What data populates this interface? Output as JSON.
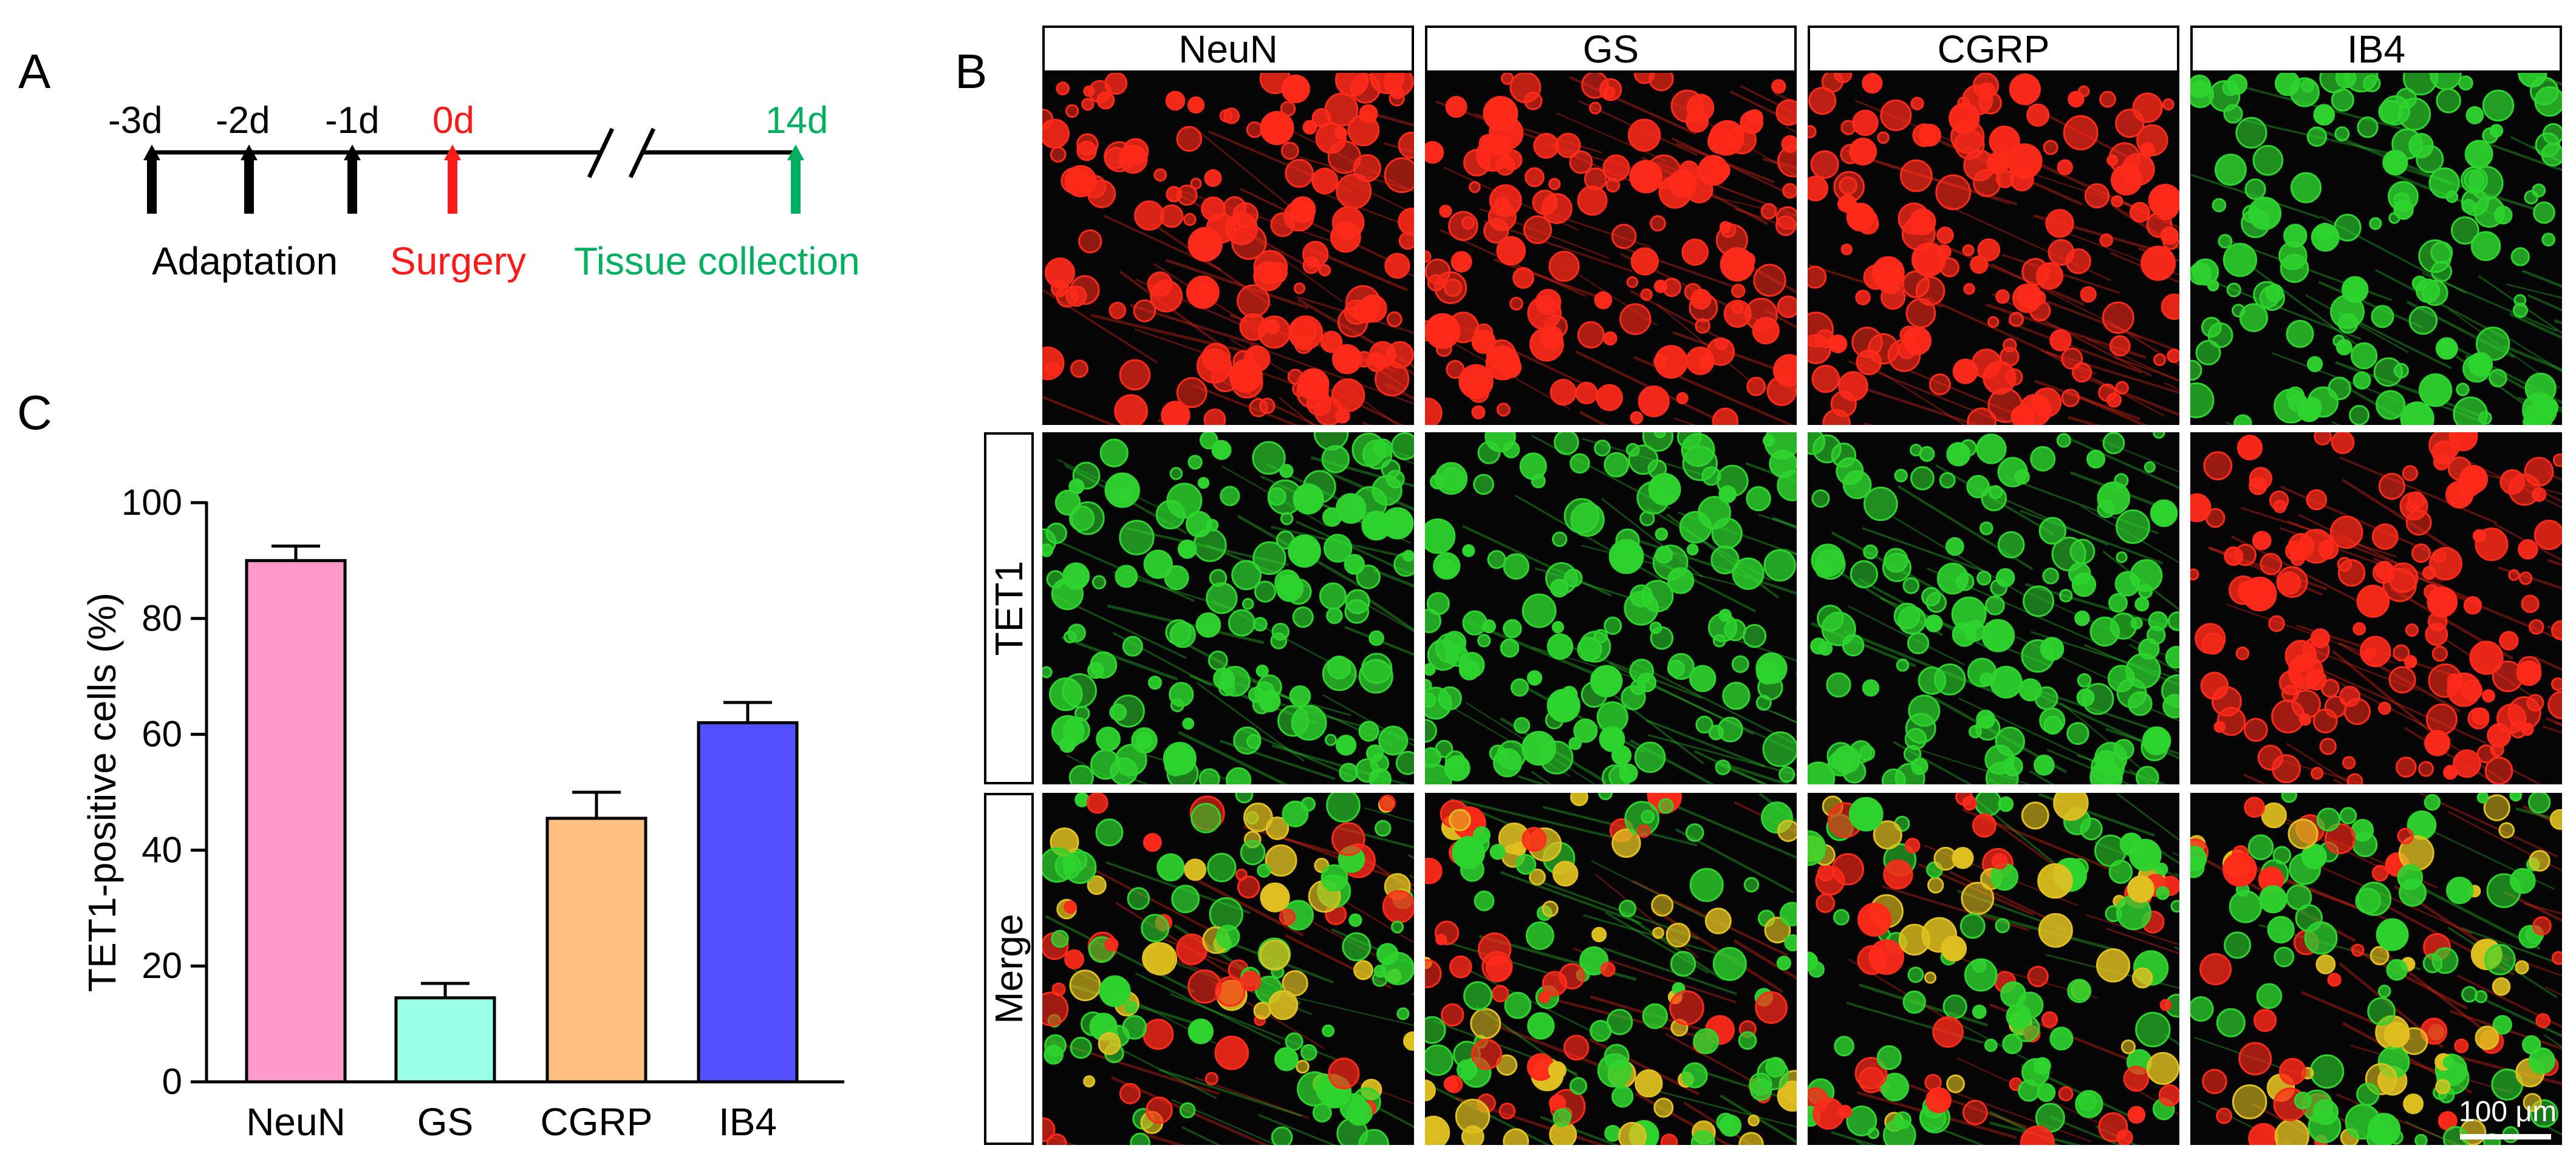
{
  "panels": {
    "a": "A",
    "b": "B",
    "c": "C"
  },
  "timeline": {
    "days": [
      {
        "label": "-3d",
        "color": "#000000"
      },
      {
        "label": "-2d",
        "color": "#000000"
      },
      {
        "label": "-1d",
        "color": "#000000"
      },
      {
        "label": "0d",
        "color": "#ff1a1a"
      },
      {
        "label": "14d",
        "color": "#00b060"
      }
    ],
    "events": {
      "adaptation": "Adaptation",
      "surgery": "Surgery",
      "tissue_collection": "Tissue collection"
    },
    "colors": {
      "surgery": "#ff1a1a",
      "collection": "#00b060",
      "base": "#000000"
    }
  },
  "micrographs": {
    "columns": [
      "NeuN",
      "GS",
      "CGRP",
      "IB4"
    ],
    "rows": [
      "",
      "TET1",
      "Merge"
    ],
    "scale_bar": "100 μm",
    "colors": {
      "red": "#ff2a1a",
      "green": "#2ed42e",
      "merge_yellow": "#e0c020"
    }
  },
  "chart_data": {
    "type": "bar",
    "categories": [
      "NeuN",
      "GS",
      "CGRP",
      "IB4"
    ],
    "values": [
      90,
      14.5,
      45.5,
      62
    ],
    "errors": [
      2.5,
      2.5,
      4.5,
      3.5
    ],
    "colors": [
      "#ff99cc",
      "#99ffe6",
      "#ffc080",
      "#5050ff"
    ],
    "ylabel": "TET1-positive cells (%)",
    "xlabel": "",
    "ylim": [
      0,
      100
    ],
    "yticks": [
      0,
      20,
      40,
      60,
      80,
      100
    ],
    "grid": false
  }
}
